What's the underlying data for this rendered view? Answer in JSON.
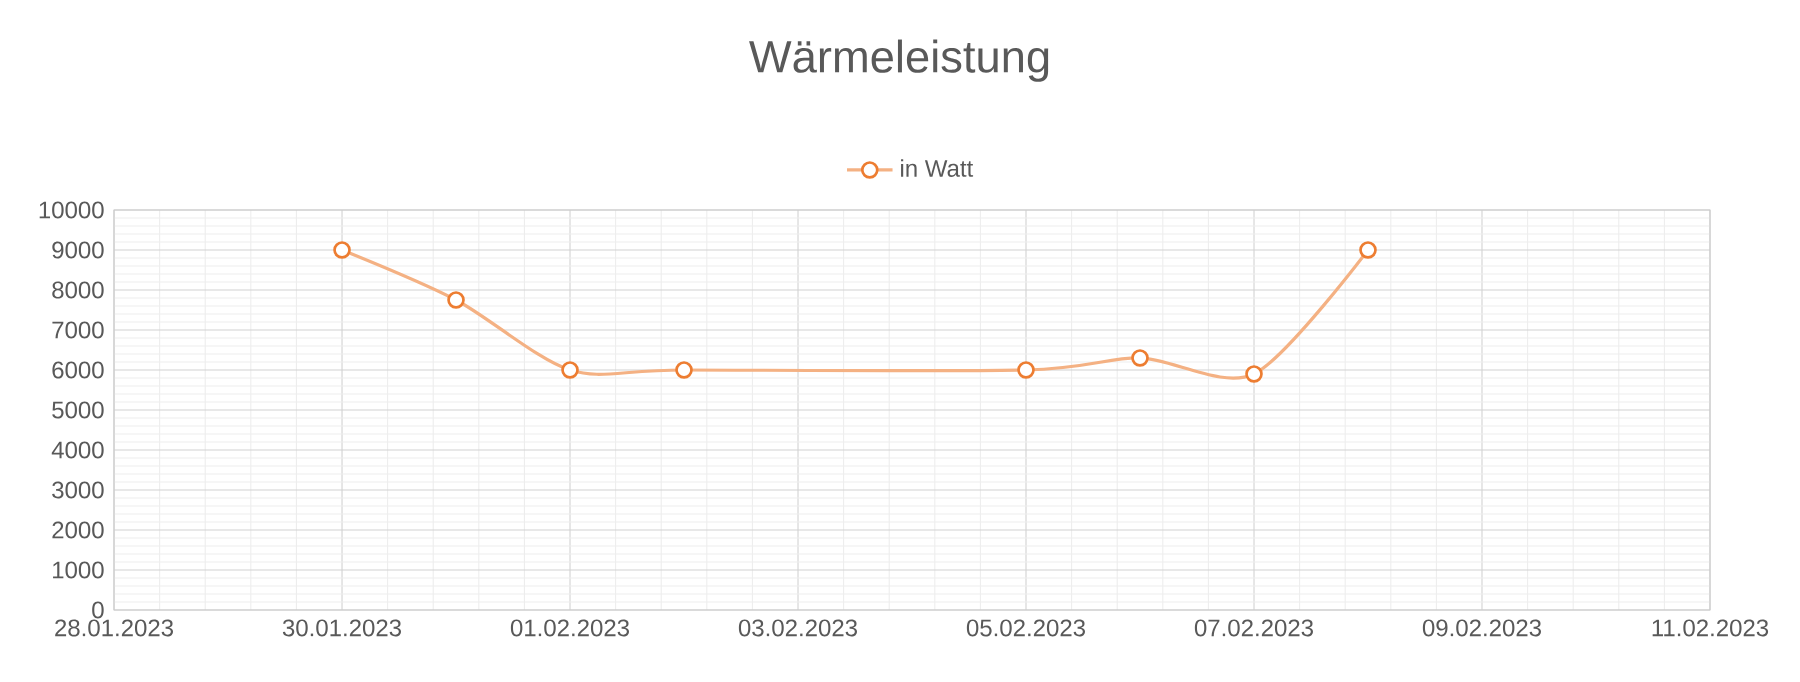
{
  "chart_data": {
    "type": "line",
    "title": "Wärmeleistung",
    "x": [
      "2023-01-30",
      "2023-01-31",
      "2023-02-01",
      "2023-02-02",
      "2023-02-05",
      "2023-02-06",
      "2023-02-07",
      "2023-02-08"
    ],
    "series": [
      {
        "name": "in Watt",
        "color": "#ed7d31",
        "values": [
          9000,
          7750,
          6000,
          6000,
          6000,
          6300,
          5900,
          9000
        ]
      }
    ],
    "xlim": [
      "2023-01-28",
      "2023-02-11"
    ],
    "xticks": [
      {
        "value": "2023-01-28",
        "label": "28.01.2023"
      },
      {
        "value": "2023-01-30",
        "label": "30.01.2023"
      },
      {
        "value": "2023-02-01",
        "label": "01.02.2023"
      },
      {
        "value": "2023-02-03",
        "label": "03.02.2023"
      },
      {
        "value": "2023-02-05",
        "label": "05.02.2023"
      },
      {
        "value": "2023-02-07",
        "label": "07.02.2023"
      },
      {
        "value": "2023-02-09",
        "label": "09.02.2023"
      },
      {
        "value": "2023-02-11",
        "label": "11.02.2023"
      }
    ],
    "ylim": [
      0,
      10000
    ],
    "yticks": [
      0,
      1000,
      2000,
      3000,
      4000,
      5000,
      6000,
      7000,
      8000,
      9000,
      10000
    ],
    "grid": true,
    "legend": "top",
    "marker": "circle",
    "line_style": "solid"
  }
}
